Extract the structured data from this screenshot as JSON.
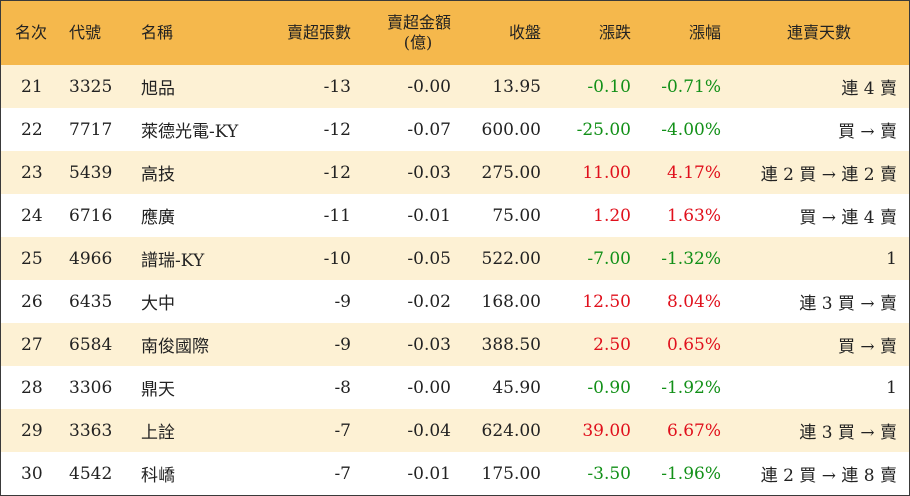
{
  "table": {
    "headers": {
      "rank": "名次",
      "code": "代號",
      "name": "名稱",
      "net_sell_lots": "賣超張數",
      "net_sell_amount_line1": "賣超金額",
      "net_sell_amount_line2": "(億)",
      "close": "收盤",
      "change": "漲跌",
      "change_pct": "漲幅",
      "consecutive_days": "連賣天數"
    },
    "colors": {
      "header_bg": "#f5b84c",
      "stripe": "#fdf1d4",
      "up": "#e0101c",
      "down": "#129018"
    },
    "rows": [
      {
        "rank": "21",
        "code": "3325",
        "name": "旭品",
        "lots": "-13",
        "amount": "-0.00",
        "close": "13.95",
        "change": "-0.10",
        "pct": "-0.71%",
        "dir": "down",
        "days": "連 4 賣"
      },
      {
        "rank": "22",
        "code": "7717",
        "name": "萊德光電-KY",
        "lots": "-12",
        "amount": "-0.07",
        "close": "600.00",
        "change": "-25.00",
        "pct": "-4.00%",
        "dir": "down",
        "days": "買 → 賣"
      },
      {
        "rank": "23",
        "code": "5439",
        "name": "高技",
        "lots": "-12",
        "amount": "-0.03",
        "close": "275.00",
        "change": "11.00",
        "pct": "4.17%",
        "dir": "up",
        "days": "連 2 買 → 連 2 賣"
      },
      {
        "rank": "24",
        "code": "6716",
        "name": "應廣",
        "lots": "-11",
        "amount": "-0.01",
        "close": "75.00",
        "change": "1.20",
        "pct": "1.63%",
        "dir": "up",
        "days": "買 → 連 4 賣"
      },
      {
        "rank": "25",
        "code": "4966",
        "name": "譜瑞-KY",
        "lots": "-10",
        "amount": "-0.05",
        "close": "522.00",
        "change": "-7.00",
        "pct": "-1.32%",
        "dir": "down",
        "days": "1"
      },
      {
        "rank": "26",
        "code": "6435",
        "name": "大中",
        "lots": "-9",
        "amount": "-0.02",
        "close": "168.00",
        "change": "12.50",
        "pct": "8.04%",
        "dir": "up",
        "days": "連 3 買 → 賣"
      },
      {
        "rank": "27",
        "code": "6584",
        "name": "南俊國際",
        "lots": "-9",
        "amount": "-0.03",
        "close": "388.50",
        "change": "2.50",
        "pct": "0.65%",
        "dir": "up",
        "days": "買 → 賣"
      },
      {
        "rank": "28",
        "code": "3306",
        "name": "鼎天",
        "lots": "-8",
        "amount": "-0.00",
        "close": "45.90",
        "change": "-0.90",
        "pct": "-1.92%",
        "dir": "down",
        "days": "1"
      },
      {
        "rank": "29",
        "code": "3363",
        "name": "上詮",
        "lots": "-7",
        "amount": "-0.04",
        "close": "624.00",
        "change": "39.00",
        "pct": "6.67%",
        "dir": "up",
        "days": "連 3 買 → 賣"
      },
      {
        "rank": "30",
        "code": "4542",
        "name": "科嶠",
        "lots": "-7",
        "amount": "-0.01",
        "close": "175.00",
        "change": "-3.50",
        "pct": "-1.96%",
        "dir": "down",
        "days": "連 2 買 → 連 8 賣"
      }
    ]
  }
}
